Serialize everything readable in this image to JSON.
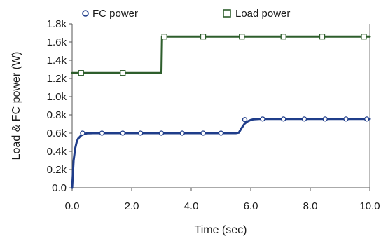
{
  "chart_data": {
    "type": "line",
    "xlabel": "Time (sec)",
    "ylabel": "Load & FC power (W)",
    "xlim": [
      0,
      10
    ],
    "ylim": [
      0,
      1800
    ],
    "x_ticks": [
      0,
      2,
      4,
      6,
      8,
      10
    ],
    "x_tick_labels": [
      "0.0",
      "2.0",
      "4.0",
      "6.0",
      "8.0",
      "10.0"
    ],
    "y_ticks": [
      0,
      200,
      400,
      600,
      800,
      1000,
      1200,
      1400,
      1600,
      1800
    ],
    "y_tick_labels": [
      "0.0",
      "0.2k",
      "0.4k",
      "0.6k",
      "0.8k",
      "1.0k",
      "1.2k",
      "1.4k",
      "1.6k",
      "1.8k"
    ],
    "grid": false,
    "legend": "top",
    "series": [
      {
        "name": "FC power",
        "color": "#1f3d8a",
        "marker": "circle",
        "x": [
          0.0,
          0.05,
          0.1,
          0.15,
          0.2,
          0.3,
          0.4,
          0.5,
          0.7,
          1.0,
          2.0,
          3.0,
          4.0,
          5.0,
          5.5,
          5.6,
          5.7,
          5.8,
          5.9,
          6.0,
          6.1,
          6.3,
          7.0,
          8.0,
          9.0,
          10.0
        ],
        "y": [
          0,
          300,
          430,
          500,
          540,
          575,
          592,
          598,
          600,
          600,
          600,
          600,
          600,
          600,
          600,
          605,
          660,
          705,
          730,
          745,
          752,
          755,
          755,
          755,
          755,
          755
        ],
        "marker_x": [
          0.35,
          1.0,
          1.7,
          2.3,
          3.0,
          3.7,
          4.4,
          5.0,
          5.8,
          6.4,
          7.1,
          7.8,
          8.5,
          9.2,
          9.9
        ],
        "marker_y": [
          600,
          600,
          600,
          600,
          600,
          600,
          600,
          600,
          748,
          755,
          755,
          755,
          755,
          755,
          755
        ]
      },
      {
        "name": "Load power",
        "color": "#2e5e2c",
        "marker": "square",
        "x": [
          0.0,
          3.0,
          3.02,
          10.0
        ],
        "y": [
          1260,
          1260,
          1660,
          1660
        ],
        "marker_x": [
          0.3,
          1.7,
          3.1,
          4.4,
          5.7,
          7.1,
          8.4,
          9.8
        ],
        "marker_y": [
          1260,
          1260,
          1660,
          1660,
          1660,
          1660,
          1660,
          1660
        ]
      }
    ]
  }
}
